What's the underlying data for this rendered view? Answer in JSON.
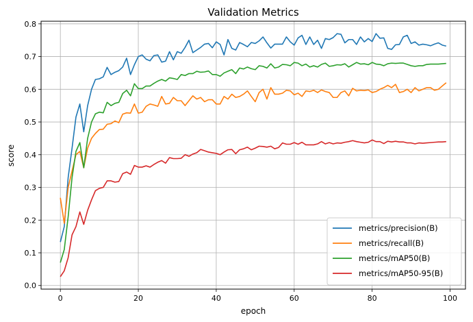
{
  "chart_data": {
    "type": "line",
    "title": "Validation Metrics",
    "xlabel": "epoch",
    "ylabel": "score",
    "xlim": [
      -4.95,
      103.95
    ],
    "ylim": [
      -0.011,
      0.808
    ],
    "xticks": [
      0,
      20,
      40,
      60,
      80,
      100
    ],
    "yticks": [
      0.0,
      0.1,
      0.2,
      0.3,
      0.4,
      0.5,
      0.6,
      0.7,
      0.8
    ],
    "xtick_labels": [
      "0",
      "20",
      "40",
      "60",
      "80",
      "100"
    ],
    "ytick_labels": [
      "0.0",
      "0.1",
      "0.2",
      "0.3",
      "0.4",
      "0.5",
      "0.6",
      "0.7",
      "0.8"
    ],
    "grid": true,
    "legend_position": "lower-right",
    "series": [
      {
        "name": "metrics/precision(B)",
        "color": "#1f77b4",
        "values": [
          0.133,
          0.18,
          0.33,
          0.42,
          0.515,
          0.555,
          0.47,
          0.55,
          0.6,
          0.63,
          0.632,
          0.638,
          0.667,
          0.645,
          0.652,
          0.657,
          0.668,
          0.695,
          0.645,
          0.675,
          0.7,
          0.705,
          0.692,
          0.687,
          0.703,
          0.705,
          0.683,
          0.686,
          0.715,
          0.69,
          0.715,
          0.71,
          0.728,
          0.75,
          0.712,
          0.72,
          0.728,
          0.738,
          0.74,
          0.727,
          0.745,
          0.737,
          0.705,
          0.752,
          0.725,
          0.72,
          0.743,
          0.737,
          0.73,
          0.743,
          0.74,
          0.748,
          0.76,
          0.742,
          0.726,
          0.738,
          0.738,
          0.738,
          0.76,
          0.745,
          0.735,
          0.757,
          0.765,
          0.737,
          0.76,
          0.737,
          0.75,
          0.725,
          0.755,
          0.752,
          0.758,
          0.77,
          0.768,
          0.742,
          0.752,
          0.752,
          0.737,
          0.76,
          0.745,
          0.755,
          0.746,
          0.77,
          0.756,
          0.757,
          0.725,
          0.722,
          0.736,
          0.737,
          0.76,
          0.765,
          0.74,
          0.745,
          0.735,
          0.738,
          0.736,
          0.733,
          0.738,
          0.742,
          0.735,
          0.732
        ]
      },
      {
        "name": "metrics/recall(B)",
        "color": "#ff7f0e",
        "values": [
          0.268,
          0.19,
          0.3,
          0.35,
          0.4,
          0.41,
          0.36,
          0.42,
          0.45,
          0.465,
          0.477,
          0.478,
          0.493,
          0.495,
          0.503,
          0.498,
          0.524,
          0.528,
          0.527,
          0.555,
          0.527,
          0.53,
          0.548,
          0.555,
          0.552,
          0.548,
          0.578,
          0.555,
          0.557,
          0.575,
          0.565,
          0.565,
          0.55,
          0.565,
          0.58,
          0.57,
          0.575,
          0.562,
          0.568,
          0.568,
          0.555,
          0.555,
          0.578,
          0.57,
          0.585,
          0.575,
          0.578,
          0.585,
          0.595,
          0.578,
          0.562,
          0.59,
          0.6,
          0.57,
          0.605,
          0.585,
          0.585,
          0.588,
          0.597,
          0.595,
          0.583,
          0.588,
          0.578,
          0.595,
          0.593,
          0.597,
          0.59,
          0.598,
          0.593,
          0.59,
          0.575,
          0.575,
          0.59,
          0.595,
          0.58,
          0.603,
          0.595,
          0.597,
          0.596,
          0.598,
          0.59,
          0.593,
          0.6,
          0.605,
          0.612,
          0.605,
          0.615,
          0.59,
          0.593,
          0.6,
          0.59,
          0.605,
          0.595,
          0.6,
          0.605,
          0.605,
          0.597,
          0.6,
          0.61,
          0.62
        ]
      },
      {
        "name": "metrics/mAP50(B)",
        "color": "#2ca02c",
        "values": [
          0.07,
          0.11,
          0.21,
          0.33,
          0.41,
          0.437,
          0.36,
          0.45,
          0.5,
          0.525,
          0.53,
          0.528,
          0.56,
          0.55,
          0.557,
          0.56,
          0.587,
          0.597,
          0.58,
          0.617,
          0.602,
          0.602,
          0.61,
          0.61,
          0.618,
          0.625,
          0.63,
          0.625,
          0.635,
          0.633,
          0.63,
          0.645,
          0.642,
          0.648,
          0.648,
          0.655,
          0.652,
          0.653,
          0.656,
          0.645,
          0.645,
          0.64,
          0.65,
          0.655,
          0.66,
          0.648,
          0.665,
          0.662,
          0.668,
          0.663,
          0.66,
          0.672,
          0.67,
          0.665,
          0.678,
          0.665,
          0.668,
          0.676,
          0.675,
          0.672,
          0.682,
          0.68,
          0.672,
          0.677,
          0.668,
          0.672,
          0.668,
          0.676,
          0.68,
          0.67,
          0.672,
          0.675,
          0.674,
          0.678,
          0.668,
          0.675,
          0.682,
          0.677,
          0.678,
          0.675,
          0.682,
          0.677,
          0.676,
          0.672,
          0.678,
          0.68,
          0.679,
          0.68,
          0.68,
          0.676,
          0.672,
          0.67,
          0.672,
          0.672,
          0.676,
          0.677,
          0.677,
          0.677,
          0.678,
          0.679
        ]
      },
      {
        "name": "metrics/mAP50-95(B)",
        "color": "#d62728",
        "values": [
          0.027,
          0.045,
          0.085,
          0.155,
          0.18,
          0.225,
          0.187,
          0.23,
          0.262,
          0.29,
          0.297,
          0.3,
          0.32,
          0.32,
          0.316,
          0.318,
          0.342,
          0.347,
          0.34,
          0.367,
          0.362,
          0.362,
          0.366,
          0.362,
          0.37,
          0.377,
          0.382,
          0.374,
          0.391,
          0.388,
          0.388,
          0.389,
          0.4,
          0.395,
          0.402,
          0.406,
          0.416,
          0.412,
          0.408,
          0.406,
          0.404,
          0.4,
          0.408,
          0.415,
          0.416,
          0.403,
          0.415,
          0.418,
          0.423,
          0.415,
          0.42,
          0.426,
          0.425,
          0.423,
          0.426,
          0.418,
          0.422,
          0.436,
          0.432,
          0.432,
          0.437,
          0.432,
          0.438,
          0.43,
          0.43,
          0.43,
          0.433,
          0.44,
          0.433,
          0.437,
          0.433,
          0.436,
          0.435,
          0.438,
          0.44,
          0.443,
          0.44,
          0.438,
          0.436,
          0.438,
          0.445,
          0.44,
          0.44,
          0.434,
          0.441,
          0.439,
          0.441,
          0.439,
          0.439,
          0.436,
          0.436,
          0.433,
          0.436,
          0.435,
          0.436,
          0.437,
          0.438,
          0.439,
          0.439,
          0.44
        ]
      }
    ]
  }
}
